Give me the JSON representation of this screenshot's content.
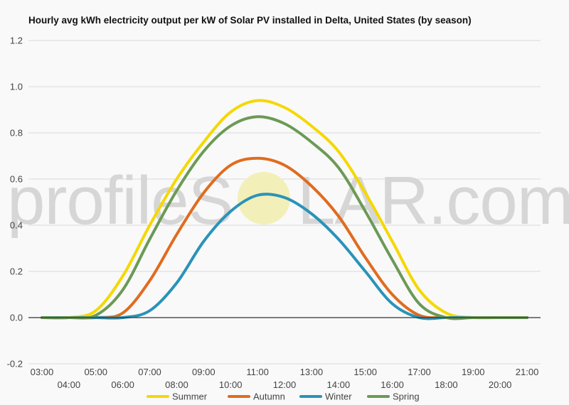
{
  "chart_data": {
    "type": "line",
    "title": "Hourly avg kWh electricity output per kW of Solar PV installed in Delta, United States (by season)",
    "xlabel": "",
    "ylabel": "",
    "ylim": [
      -0.2,
      1.2
    ],
    "xlim": [
      2.5,
      21.5
    ],
    "yticks": [
      "-0.2",
      "0.0",
      "0.2",
      "0.4",
      "0.6",
      "0.8",
      "1.0",
      "1.2"
    ],
    "xticks_top": [
      "03:00",
      "05:00",
      "07:00",
      "09:00",
      "11:00",
      "13:00",
      "15:00",
      "17:00",
      "19:00",
      "21:00"
    ],
    "xticks_bottom": [
      "04:00",
      "06:00",
      "08:00",
      "10:00",
      "12:00",
      "14:00",
      "16:00",
      "18:00",
      "20:00"
    ],
    "grid": true,
    "legend_position": "bottom",
    "x": [
      3,
      4,
      5,
      6,
      7,
      8,
      9,
      10,
      11,
      12,
      13,
      14,
      15,
      16,
      17,
      18,
      19,
      20,
      21
    ],
    "series": [
      {
        "name": "Summer",
        "color": "#f5d800",
        "values": [
          0,
          0,
          0.03,
          0.18,
          0.4,
          0.6,
          0.76,
          0.89,
          0.94,
          0.91,
          0.83,
          0.72,
          0.54,
          0.33,
          0.12,
          0.02,
          0,
          0,
          0
        ]
      },
      {
        "name": "Autumn",
        "color": "#e06c1f",
        "values": [
          0,
          0,
          0,
          0.02,
          0.16,
          0.36,
          0.54,
          0.66,
          0.69,
          0.66,
          0.57,
          0.44,
          0.26,
          0.1,
          0.01,
          0,
          0,
          0,
          0
        ]
      },
      {
        "name": "Winter",
        "color": "#2a93b8",
        "values": [
          0,
          0,
          0,
          0,
          0.03,
          0.15,
          0.33,
          0.46,
          0.53,
          0.52,
          0.45,
          0.34,
          0.2,
          0.06,
          0,
          0,
          0,
          0,
          0
        ]
      },
      {
        "name": "Spring",
        "color": "#6b9a55",
        "values": [
          0,
          0,
          0.01,
          0.12,
          0.34,
          0.55,
          0.72,
          0.83,
          0.87,
          0.84,
          0.76,
          0.65,
          0.46,
          0.25,
          0.06,
          0,
          0,
          0,
          0
        ]
      }
    ]
  },
  "watermark": {
    "left": "profileS",
    "right": "LAR.com"
  }
}
